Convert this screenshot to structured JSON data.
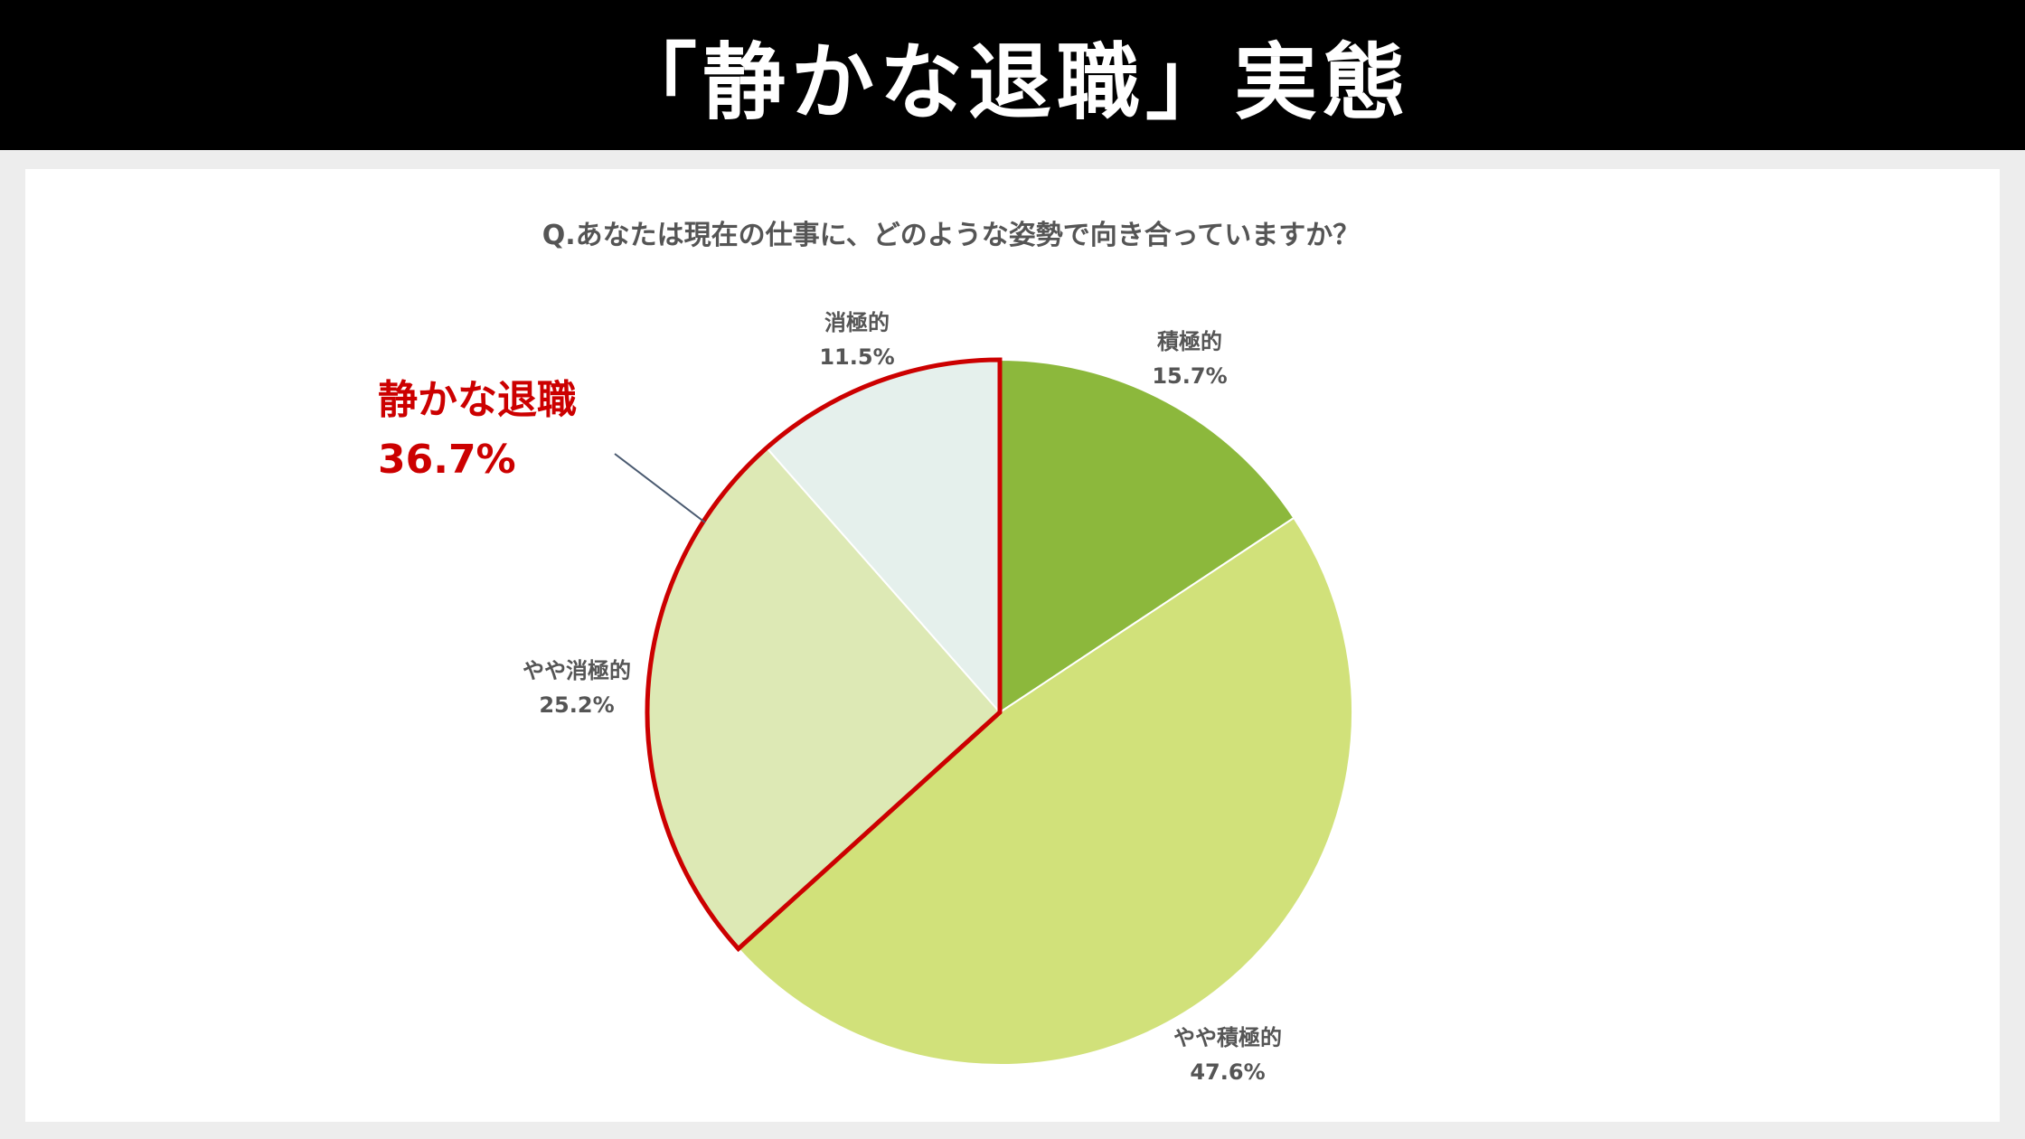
{
  "header": {
    "title": "「静かな退職」実態"
  },
  "chart_data": {
    "type": "pie",
    "title": "Q.あなたは現在の仕事に、どのような姿勢で向き合っていますか？",
    "start_angle_deg": 0,
    "direction": "clockwise",
    "slices": [
      {
        "label": "積極的",
        "value": 15.7,
        "value_label": "15.7%",
        "color": "#8cb83c"
      },
      {
        "label": "やや積極的",
        "value": 47.6,
        "value_label": "47.6%",
        "color": "#d1e17a"
      },
      {
        "label": "やや消極的",
        "value": 25.2,
        "value_label": "25.2%",
        "color": "#dde9b5"
      },
      {
        "label": "消極的",
        "value": 11.5,
        "value_label": "11.5%",
        "color": "#e5f0ec"
      }
    ],
    "highlight": {
      "label": "静かな退職",
      "value_label": "36.7%",
      "includes": [
        "やや消極的",
        "消極的"
      ],
      "color": "#cc0000"
    }
  }
}
